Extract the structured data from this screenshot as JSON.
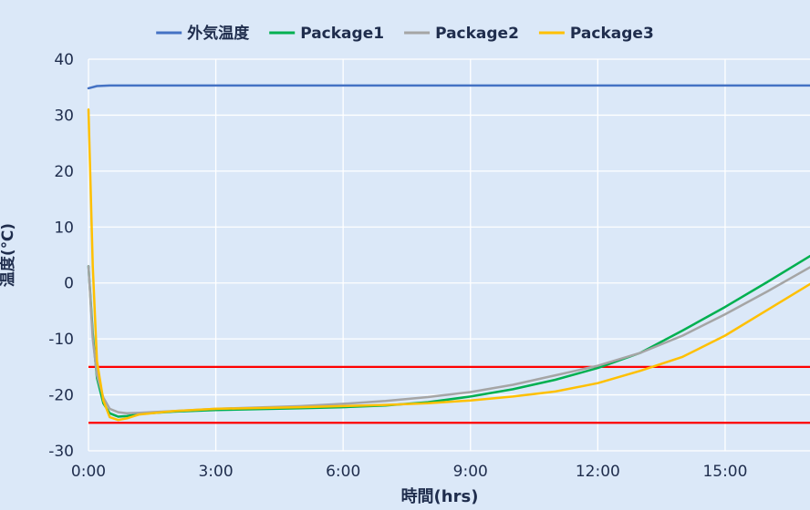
{
  "chart_data": {
    "type": "line",
    "title": "",
    "xlabel": "時間(hrs)",
    "ylabel": "温度(℃)",
    "xlim": [
      0,
      17
    ],
    "ylim": [
      -30,
      40
    ],
    "x_ticks": [
      {
        "value": 0,
        "label": "0:00"
      },
      {
        "value": 3,
        "label": "3:00"
      },
      {
        "value": 6,
        "label": "6:00"
      },
      {
        "value": 9,
        "label": "9:00"
      },
      {
        "value": 12,
        "label": "12:00"
      },
      {
        "value": 15,
        "label": "15:00"
      }
    ],
    "y_ticks": [
      40,
      30,
      20,
      10,
      0,
      -10,
      -20,
      -30
    ],
    "grid": true,
    "legend_position": "top",
    "reference_lines": [
      {
        "y": -15,
        "color": "#ff0000"
      },
      {
        "y": -25,
        "color": "#ff0000"
      }
    ],
    "series": [
      {
        "name": "外気温度",
        "color": "#4472c4",
        "points": [
          [
            0,
            34.8
          ],
          [
            0.2,
            35.2
          ],
          [
            0.5,
            35.3
          ],
          [
            1,
            35.3
          ],
          [
            17,
            35.3
          ]
        ]
      },
      {
        "name": "Package1",
        "color": "#00b050",
        "points": [
          [
            0,
            3
          ],
          [
            0.1,
            -9
          ],
          [
            0.2,
            -17
          ],
          [
            0.35,
            -21.5
          ],
          [
            0.5,
            -23.3
          ],
          [
            0.7,
            -23.9
          ],
          [
            0.9,
            -23.8
          ],
          [
            1.2,
            -23.4
          ],
          [
            2,
            -23
          ],
          [
            3,
            -22.7
          ],
          [
            5,
            -22.4
          ],
          [
            6,
            -22.2
          ],
          [
            7,
            -21.9
          ],
          [
            8,
            -21.3
          ],
          [
            9,
            -20.3
          ],
          [
            10,
            -19
          ],
          [
            11,
            -17.3
          ],
          [
            12,
            -15.2
          ],
          [
            13,
            -12.5
          ],
          [
            14,
            -8.5
          ],
          [
            15,
            -4.3
          ],
          [
            16,
            0.2
          ],
          [
            17,
            4.8
          ]
        ]
      },
      {
        "name": "Package2",
        "color": "#a5a5a5",
        "points": [
          [
            0,
            3
          ],
          [
            0.1,
            -10
          ],
          [
            0.2,
            -16.5
          ],
          [
            0.35,
            -20.5
          ],
          [
            0.5,
            -22.5
          ],
          [
            0.7,
            -23.1
          ],
          [
            0.9,
            -23.3
          ],
          [
            1.2,
            -23.2
          ],
          [
            2,
            -22.9
          ],
          [
            3,
            -22.5
          ],
          [
            5,
            -22
          ],
          [
            6,
            -21.6
          ],
          [
            7,
            -21.1
          ],
          [
            8,
            -20.4
          ],
          [
            9,
            -19.5
          ],
          [
            10,
            -18.2
          ],
          [
            11,
            -16.5
          ],
          [
            12,
            -14.8
          ],
          [
            13,
            -12.5
          ],
          [
            14,
            -9.4
          ],
          [
            15,
            -5.6
          ],
          [
            16,
            -1.5
          ],
          [
            17,
            2.8
          ]
        ]
      },
      {
        "name": "Package3",
        "color": "#ffc000",
        "points": [
          [
            0,
            31
          ],
          [
            0.1,
            3
          ],
          [
            0.2,
            -14
          ],
          [
            0.35,
            -21
          ],
          [
            0.5,
            -24
          ],
          [
            0.7,
            -24.5
          ],
          [
            0.9,
            -24.2
          ],
          [
            1.2,
            -23.5
          ],
          [
            2,
            -22.9
          ],
          [
            3,
            -22.5
          ],
          [
            5,
            -22.2
          ],
          [
            6,
            -22
          ],
          [
            7,
            -21.8
          ],
          [
            8,
            -21.5
          ],
          [
            9,
            -21
          ],
          [
            10,
            -20.3
          ],
          [
            11,
            -19.4
          ],
          [
            12,
            -17.9
          ],
          [
            13,
            -15.7
          ],
          [
            14,
            -13.2
          ],
          [
            15,
            -9.4
          ],
          [
            16,
            -4.8
          ],
          [
            17,
            -0.2
          ]
        ]
      }
    ]
  }
}
